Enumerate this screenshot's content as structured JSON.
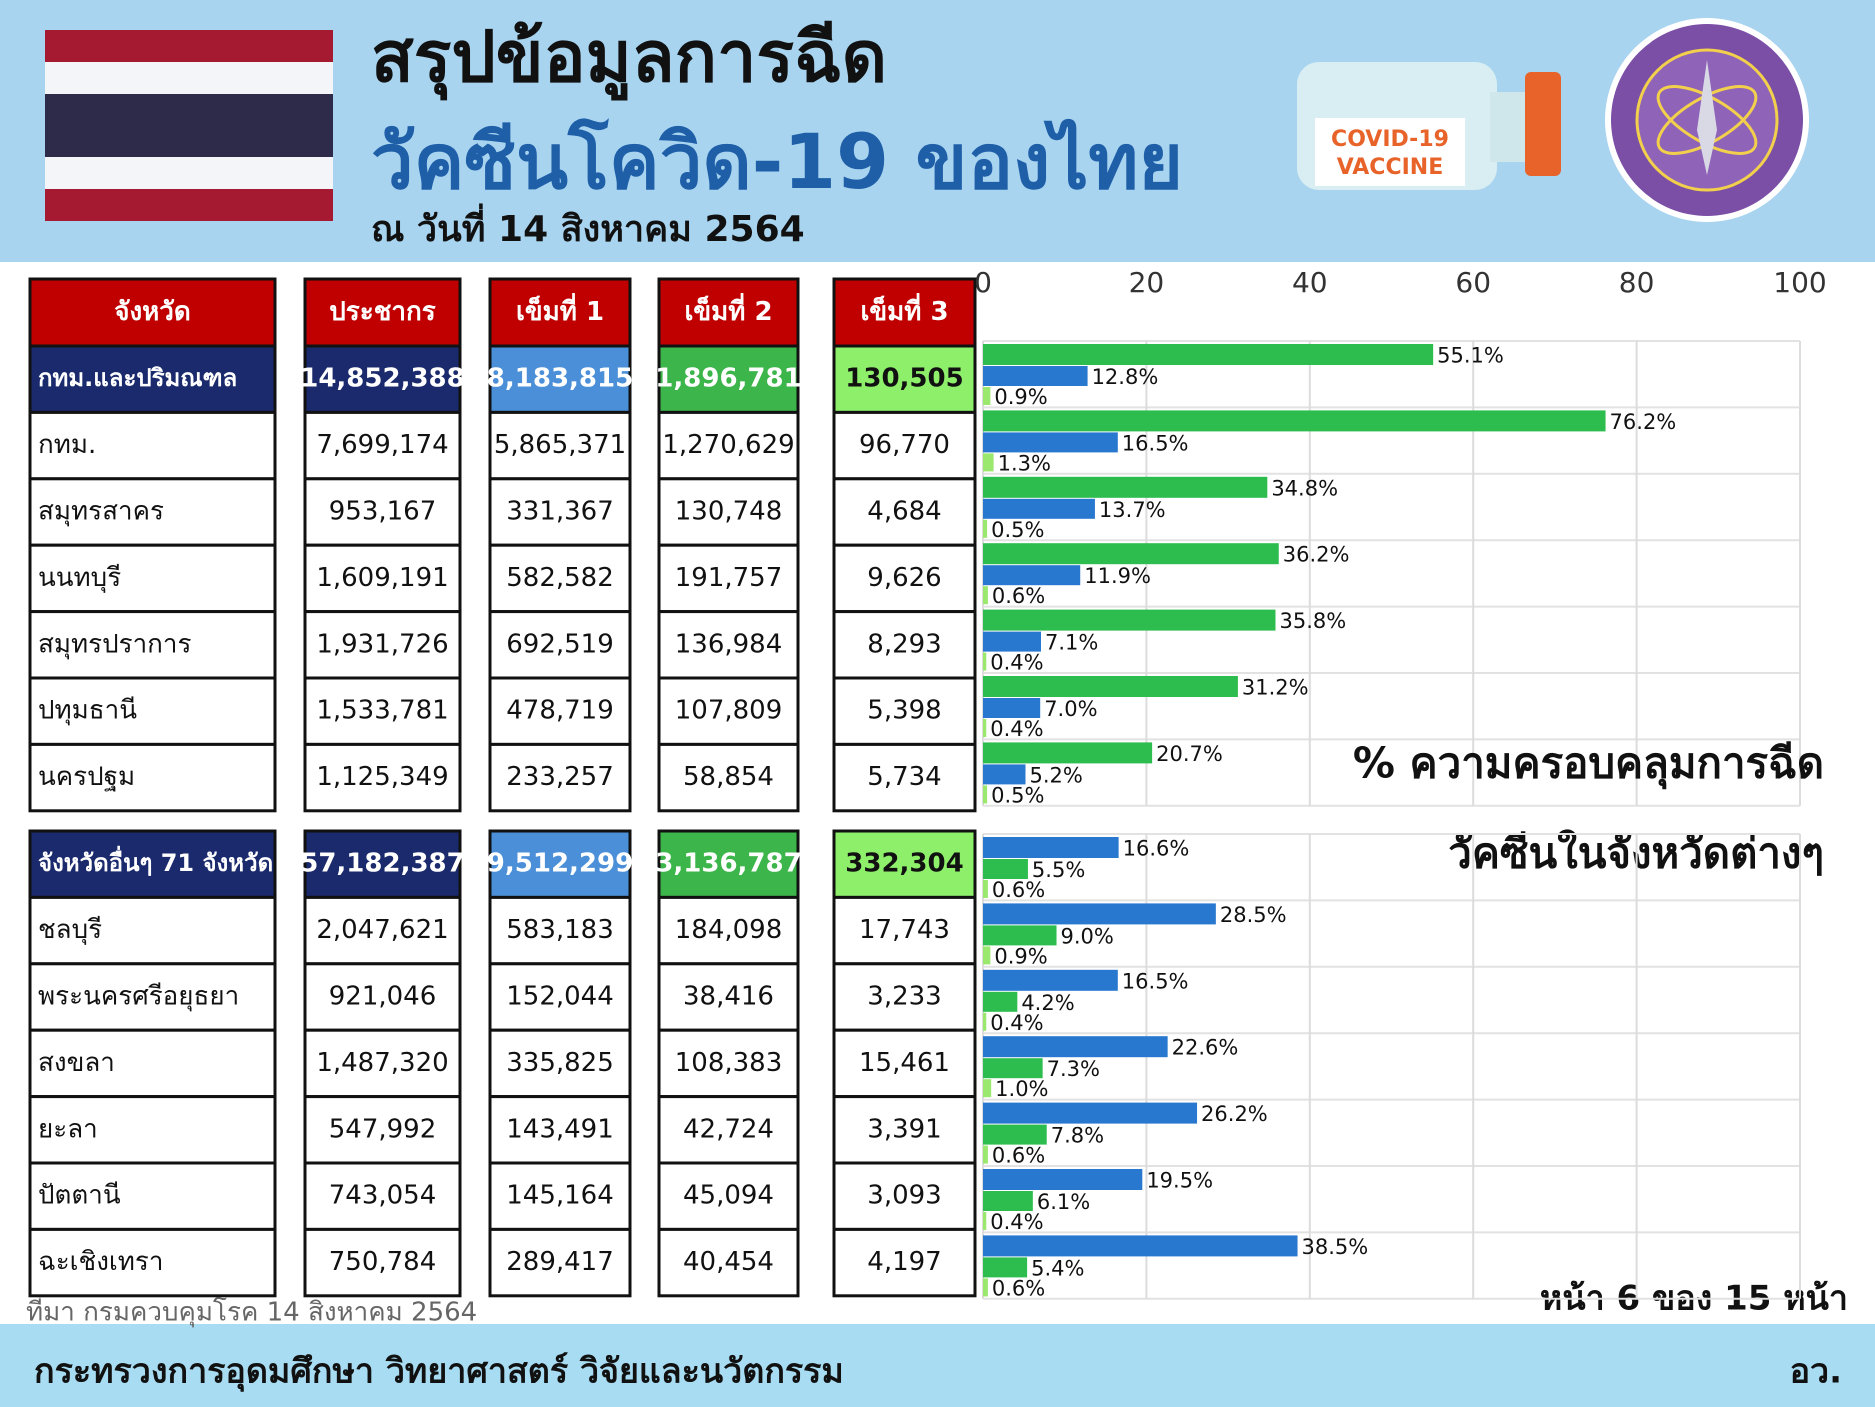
{
  "header": {
    "title_line1": "สรุปข้อมูลการฉีด",
    "title_line2": "วัคซีนโควิด-19 ของไทย",
    "date": "ณ วันที่ 14 สิงหาคม 2564",
    "vaccine_label": [
      "COVID-19",
      "VACCINE"
    ]
  },
  "table": {
    "columns": [
      "จังหวัด",
      "ประชากร",
      "เข็มที่ 1",
      "เข็มที่ 2",
      "เข็มที่ 3"
    ],
    "groups": [
      {
        "summary": [
          "กทม.และปริมณฑล",
          "14,852,388",
          "8,183,815",
          "1,896,781",
          "130,505"
        ],
        "rows": [
          [
            "กทม.",
            "7,699,174",
            "5,865,371",
            "1,270,629",
            "96,770"
          ],
          [
            "สมุทรสาคร",
            "953,167",
            "331,367",
            "130,748",
            "4,684"
          ],
          [
            "นนทบุรี",
            "1,609,191",
            "582,582",
            "191,757",
            "9,626"
          ],
          [
            "สมุทรปราการ",
            "1,931,726",
            "692,519",
            "136,984",
            "8,293"
          ],
          [
            "ปทุมธานี",
            "1,533,781",
            "478,719",
            "107,809",
            "5,398"
          ],
          [
            "นครปฐม",
            "1,125,349",
            "233,257",
            "58,854",
            "5,734"
          ]
        ]
      },
      {
        "summary": [
          "จังหวัดอื่นๆ 71 จังหวัด",
          "57,182,387",
          "9,512,299",
          "3,136,787",
          "332,304"
        ],
        "rows": [
          [
            "ชลบุรี",
            "2,047,621",
            "583,183",
            "184,098",
            "17,743"
          ],
          [
            "พระนครศรีอยุธยา",
            "921,046",
            "152,044",
            "38,416",
            "3,233"
          ],
          [
            "สงขลา",
            "1,487,320",
            "335,825",
            "108,383",
            "15,461"
          ],
          [
            "ยะลา",
            "547,992",
            "143,491",
            "42,724",
            "3,391"
          ],
          [
            "ปัตตานี",
            "743,054",
            "145,164",
            "45,094",
            "3,093"
          ],
          [
            "ฉะเชิงเทรา",
            "750,784",
            "289,417",
            "40,454",
            "4,197"
          ]
        ]
      }
    ]
  },
  "chart_data": [
    {
      "type": "hbar",
      "categories": [
        null,
        null,
        null,
        null,
        null,
        null,
        null
      ],
      "xlim": [
        0,
        100
      ],
      "xticks": [
        0,
        20,
        40,
        60,
        80,
        100
      ],
      "grid": true,
      "annotation": [
        "% ความครอบคลุมการฉีด",
        "วัคซีนในจังหวัดต่างๆ"
      ],
      "series": [
        {
          "color": "#2dbd4e",
          "values": [
            55.1,
            76.2,
            34.8,
            36.2,
            35.8,
            31.2,
            20.7
          ],
          "value_labels": [
            "55.1%",
            "76.2%",
            "34.8%",
            "36.2%",
            "35.8%",
            "31.2%",
            "20.7%"
          ]
        },
        {
          "color": "#2878d0",
          "values": [
            12.8,
            16.5,
            13.7,
            11.9,
            7.1,
            7.0,
            5.2
          ],
          "value_labels": [
            "12.8%",
            "16.5%",
            "13.7%",
            "11.9%",
            "7.1%",
            "7.0%",
            "5.2%"
          ]
        },
        {
          "color": "#9be86e",
          "values": [
            0.9,
            1.3,
            0.5,
            0.6,
            0.4,
            0.4,
            0.5
          ],
          "value_labels": [
            "0.9%",
            "1.3%",
            "0.5%",
            "0.6%",
            "0.4%",
            "0.4%",
            "0.5%"
          ]
        }
      ]
    },
    {
      "type": "hbar",
      "categories": [
        null,
        null,
        null,
        null,
        null,
        null,
        null
      ],
      "xlim": [
        0,
        100
      ],
      "grid": true,
      "series": [
        {
          "color": "#2878d0",
          "values": [
            16.6,
            28.5,
            16.5,
            22.6,
            26.2,
            19.5,
            38.5
          ],
          "value_labels": [
            "16.6%",
            "28.5%",
            "16.5%",
            "22.6%",
            "26.2%",
            "19.5%",
            "38.5%"
          ]
        },
        {
          "color": "#2dbd4e",
          "values": [
            5.5,
            9.0,
            4.2,
            7.3,
            7.8,
            6.1,
            5.4
          ],
          "value_labels": [
            "5.5%",
            "9.0%",
            "4.2%",
            "7.3%",
            "7.8%",
            "6.1%",
            "5.4%"
          ]
        },
        {
          "color": "#9be86e",
          "values": [
            0.6,
            0.9,
            0.4,
            1.0,
            0.6,
            0.4,
            0.6
          ],
          "value_labels": [
            "0.6%",
            "0.9%",
            "0.4%",
            "1.0%",
            "0.6%",
            "0.4%",
            "0.6%"
          ]
        }
      ]
    }
  ],
  "footer": {
    "source": "ที่มา กรมควบคุมโรค 14 สิงหาคม 2564",
    "page": "หน้า 6 ของ 15 หน้า",
    "ministry": "กระทรวงการอุดมศึกษา วิทยาศาสตร์ วิจัยและนวัตกรรม",
    "abbr": "อว."
  }
}
